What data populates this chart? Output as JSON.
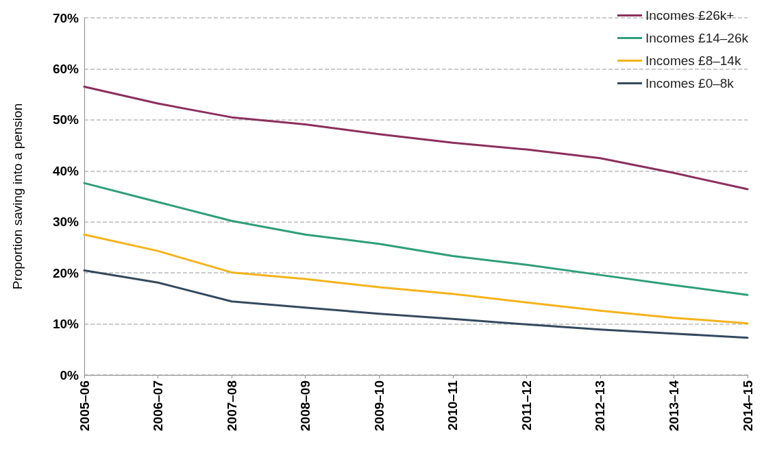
{
  "chart_data": {
    "type": "line",
    "ylabel": "Proportion saving into a pension",
    "categories": [
      "2005–06",
      "2006–07",
      "2007–08",
      "2008–09",
      "2009–10",
      "2010–11",
      "2011–12",
      "2012–13",
      "2013–14",
      "2014–15"
    ],
    "series": [
      {
        "name": "Incomes £26k+",
        "color": "#8b2f5d",
        "values": [
          56.5,
          53.2,
          50.5,
          49.1,
          47.2,
          45.5,
          44.2,
          42.5,
          39.6,
          36.4
        ]
      },
      {
        "name": "Incomes £14–26k",
        "color": "#2e9e77",
        "values": [
          37.6,
          33.9,
          30.2,
          27.5,
          25.7,
          23.3,
          21.6,
          19.6,
          17.6,
          15.7
        ]
      },
      {
        "name": "Incomes £8–14k",
        "color": "#f5b21b",
        "values": [
          27.5,
          24.3,
          20.1,
          18.8,
          17.2,
          15.9,
          14.2,
          12.6,
          11.2,
          10.1
        ]
      },
      {
        "name": "Incomes £0–8k",
        "color": "#34495e",
        "values": [
          20.5,
          18.1,
          14.4,
          13.2,
          12.0,
          11.0,
          9.9,
          8.9,
          8.1,
          7.3
        ]
      }
    ],
    "ylim": [
      0,
      70
    ],
    "yticks": [
      {
        "value": 0,
        "label": "0%"
      },
      {
        "value": 10,
        "label": "10%"
      },
      {
        "value": 20,
        "label": "20%"
      },
      {
        "value": 30,
        "label": "30%"
      },
      {
        "value": 40,
        "label": "40%"
      },
      {
        "value": 50,
        "label": "50%"
      },
      {
        "value": 60,
        "label": "60%"
      },
      {
        "value": 70,
        "label": "70%"
      }
    ],
    "grid": "y",
    "legend": "top right",
    "marker": "none",
    "line_style": "solid"
  }
}
